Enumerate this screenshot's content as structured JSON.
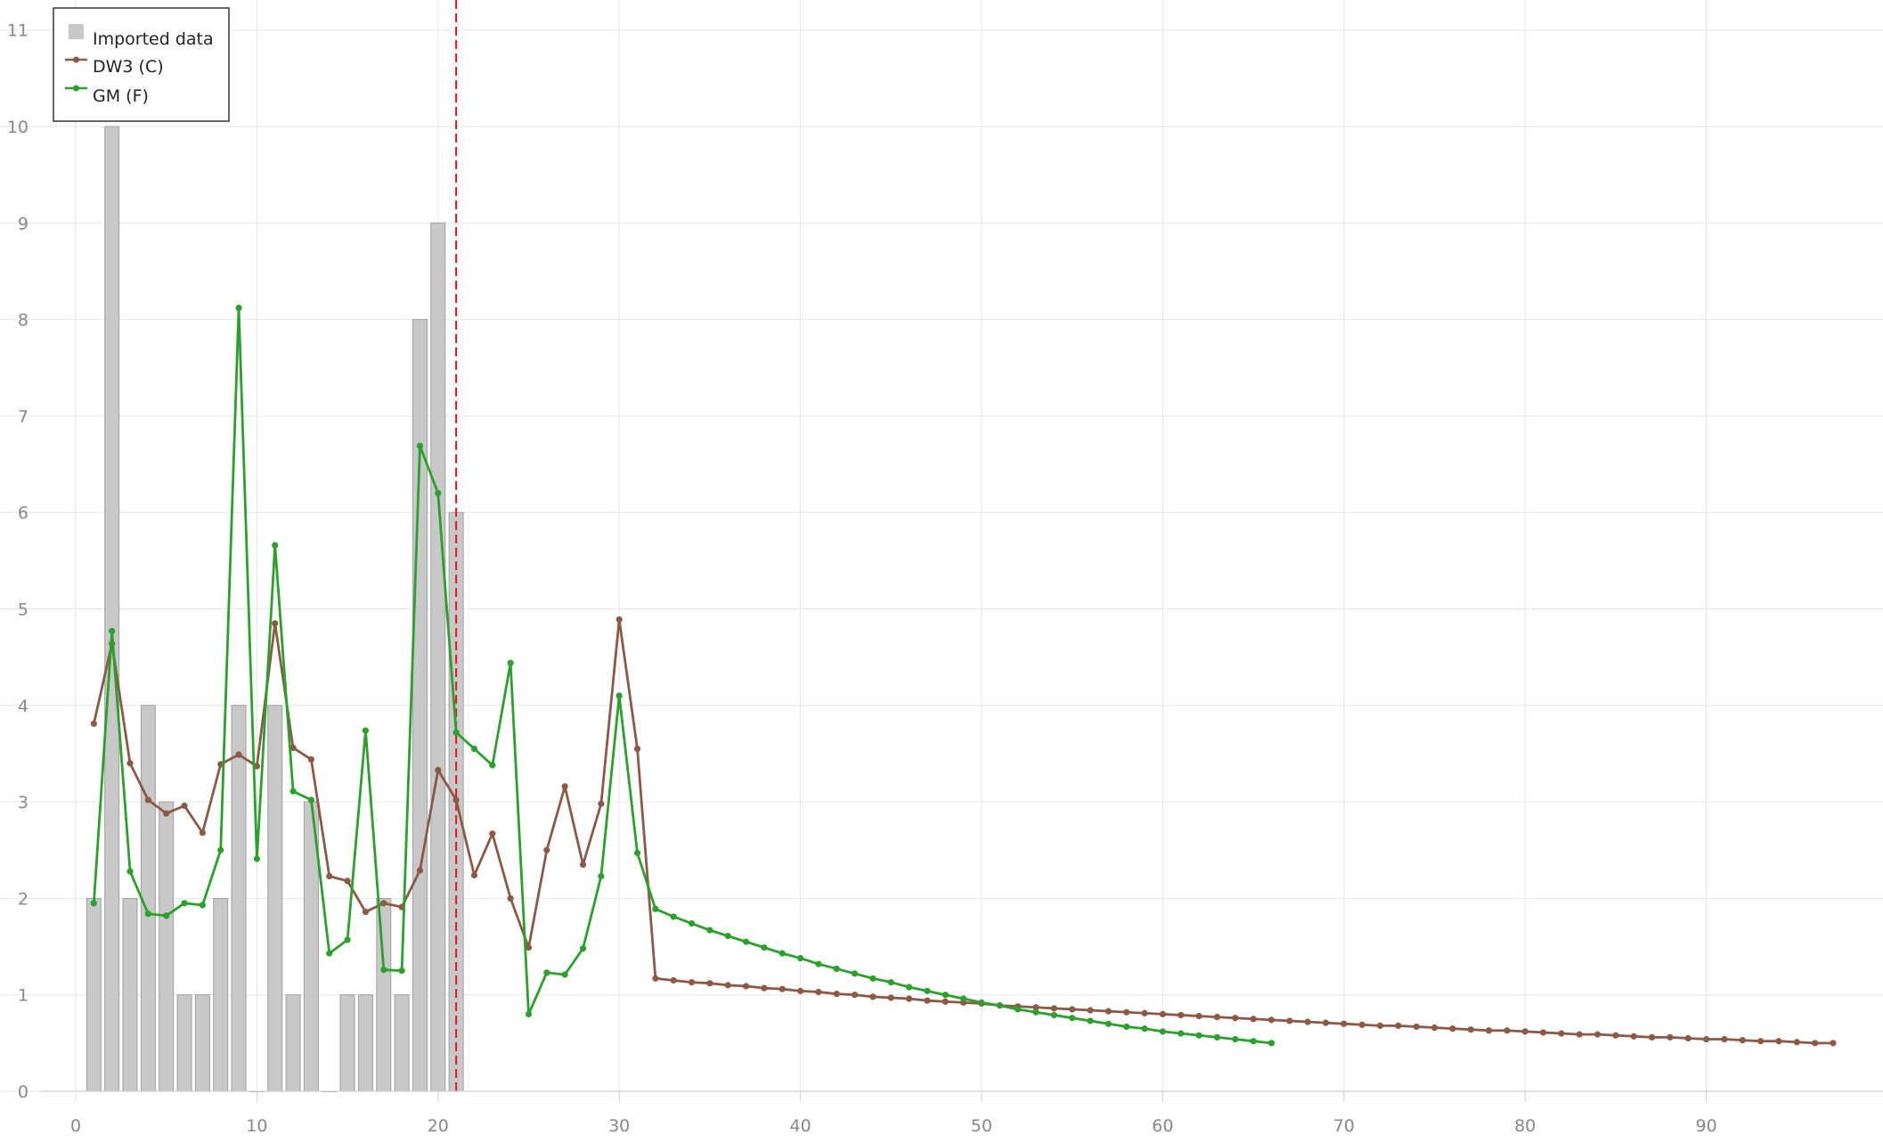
{
  "chart_data": {
    "type": "bar",
    "title": "",
    "xlabel": "",
    "ylabel": "",
    "xlim": [
      -2,
      101
    ],
    "ylim": [
      0,
      11
    ],
    "grid": true,
    "legend_placement": "top-left",
    "x_ticks": [
      0,
      10,
      20,
      30,
      40,
      50,
      60,
      70,
      80,
      90
    ],
    "y_ticks": [
      0,
      1,
      2,
      3,
      4,
      5,
      6,
      7,
      8,
      9,
      10,
      11
    ],
    "vertical_marker_x": 21,
    "series": [
      {
        "name": "Imported data",
        "kind": "bar",
        "color": "#c8c8c8",
        "x": [
          1,
          2,
          3,
          4,
          5,
          6,
          7,
          8,
          9,
          10,
          11,
          12,
          13,
          14,
          15,
          16,
          17,
          18,
          19,
          20,
          21
        ],
        "values": [
          2,
          10,
          2,
          4,
          3,
          1,
          1,
          2,
          4,
          0,
          4,
          1,
          3,
          0,
          1,
          1,
          2,
          1,
          8,
          9,
          6
        ]
      },
      {
        "name": "DW3 (C)",
        "kind": "line",
        "color": "#8b5a46",
        "x": [
          1,
          2,
          3,
          4,
          5,
          6,
          7,
          8,
          9,
          10,
          11,
          12,
          13,
          14,
          15,
          16,
          17,
          18,
          19,
          20,
          21,
          22,
          23,
          24,
          25,
          26,
          27,
          28,
          29,
          30,
          31,
          32,
          33,
          34,
          35,
          36,
          37,
          38,
          39,
          40,
          41,
          42,
          43,
          44,
          45,
          46,
          47,
          48,
          49,
          50,
          51,
          52,
          53,
          54,
          55,
          56,
          57,
          58,
          59,
          60,
          61,
          62,
          63,
          64,
          65,
          66,
          67,
          68,
          69,
          70,
          71,
          72,
          73,
          74,
          75,
          76,
          77,
          78,
          79,
          80,
          81,
          82,
          83,
          84,
          85,
          86,
          87,
          88,
          89,
          90,
          91,
          92,
          93,
          94,
          95,
          96,
          97
        ],
        "values": [
          3.81,
          4.64,
          3.4,
          3.02,
          2.88,
          2.96,
          2.68,
          3.39,
          3.49,
          3.37,
          4.85,
          3.56,
          3.44,
          2.23,
          2.18,
          1.86,
          1.95,
          1.91,
          2.29,
          3.33,
          3.02,
          2.24,
          2.67,
          2.0,
          1.49,
          2.5,
          3.16,
          2.35,
          2.98,
          4.89,
          3.55,
          1.17,
          1.15,
          1.13,
          1.12,
          1.1,
          1.09,
          1.07,
          1.06,
          1.04,
          1.03,
          1.01,
          1.0,
          0.98,
          0.97,
          0.96,
          0.94,
          0.93,
          0.92,
          0.91,
          0.89,
          0.88,
          0.87,
          0.86,
          0.85,
          0.84,
          0.83,
          0.82,
          0.81,
          0.8,
          0.79,
          0.78,
          0.77,
          0.76,
          0.75,
          0.74,
          0.73,
          0.72,
          0.71,
          0.7,
          0.69,
          0.68,
          0.68,
          0.67,
          0.66,
          0.65,
          0.64,
          0.63,
          0.63,
          0.62,
          0.61,
          0.6,
          0.59,
          0.59,
          0.58,
          0.57,
          0.56,
          0.56,
          0.55,
          0.54,
          0.54,
          0.53,
          0.52,
          0.52,
          0.51,
          0.5,
          0.5
        ]
      },
      {
        "name": "GM (F)",
        "kind": "line",
        "color": "#2ca02c",
        "x": [
          1,
          2,
          3,
          4,
          5,
          6,
          7,
          8,
          9,
          10,
          11,
          12,
          13,
          14,
          15,
          16,
          17,
          18,
          19,
          20,
          21,
          22,
          23,
          24,
          25,
          26,
          27,
          28,
          29,
          30,
          31,
          32,
          33,
          34,
          35,
          36,
          37,
          38,
          39,
          40,
          41,
          42,
          43,
          44,
          45,
          46,
          47,
          48,
          49,
          50,
          51,
          52,
          53,
          54,
          55,
          56,
          57,
          58,
          59,
          60,
          61,
          62,
          63,
          64,
          65,
          66
        ],
        "values": [
          1.95,
          4.77,
          2.28,
          1.84,
          1.82,
          1.95,
          1.93,
          2.5,
          8.12,
          2.41,
          5.66,
          3.11,
          3.02,
          1.43,
          1.57,
          3.74,
          1.26,
          1.25,
          6.69,
          6.2,
          3.72,
          3.55,
          3.38,
          4.44,
          0.8,
          1.23,
          1.21,
          1.48,
          2.23,
          4.1,
          2.47,
          1.89,
          1.81,
          1.74,
          1.67,
          1.61,
          1.55,
          1.49,
          1.43,
          1.38,
          1.32,
          1.27,
          1.22,
          1.17,
          1.13,
          1.08,
          1.04,
          1.0,
          0.96,
          0.92,
          0.89,
          0.85,
          0.82,
          0.79,
          0.76,
          0.73,
          0.7,
          0.67,
          0.65,
          0.62,
          0.6,
          0.58,
          0.56,
          0.54,
          0.52,
          0.5
        ]
      }
    ]
  }
}
